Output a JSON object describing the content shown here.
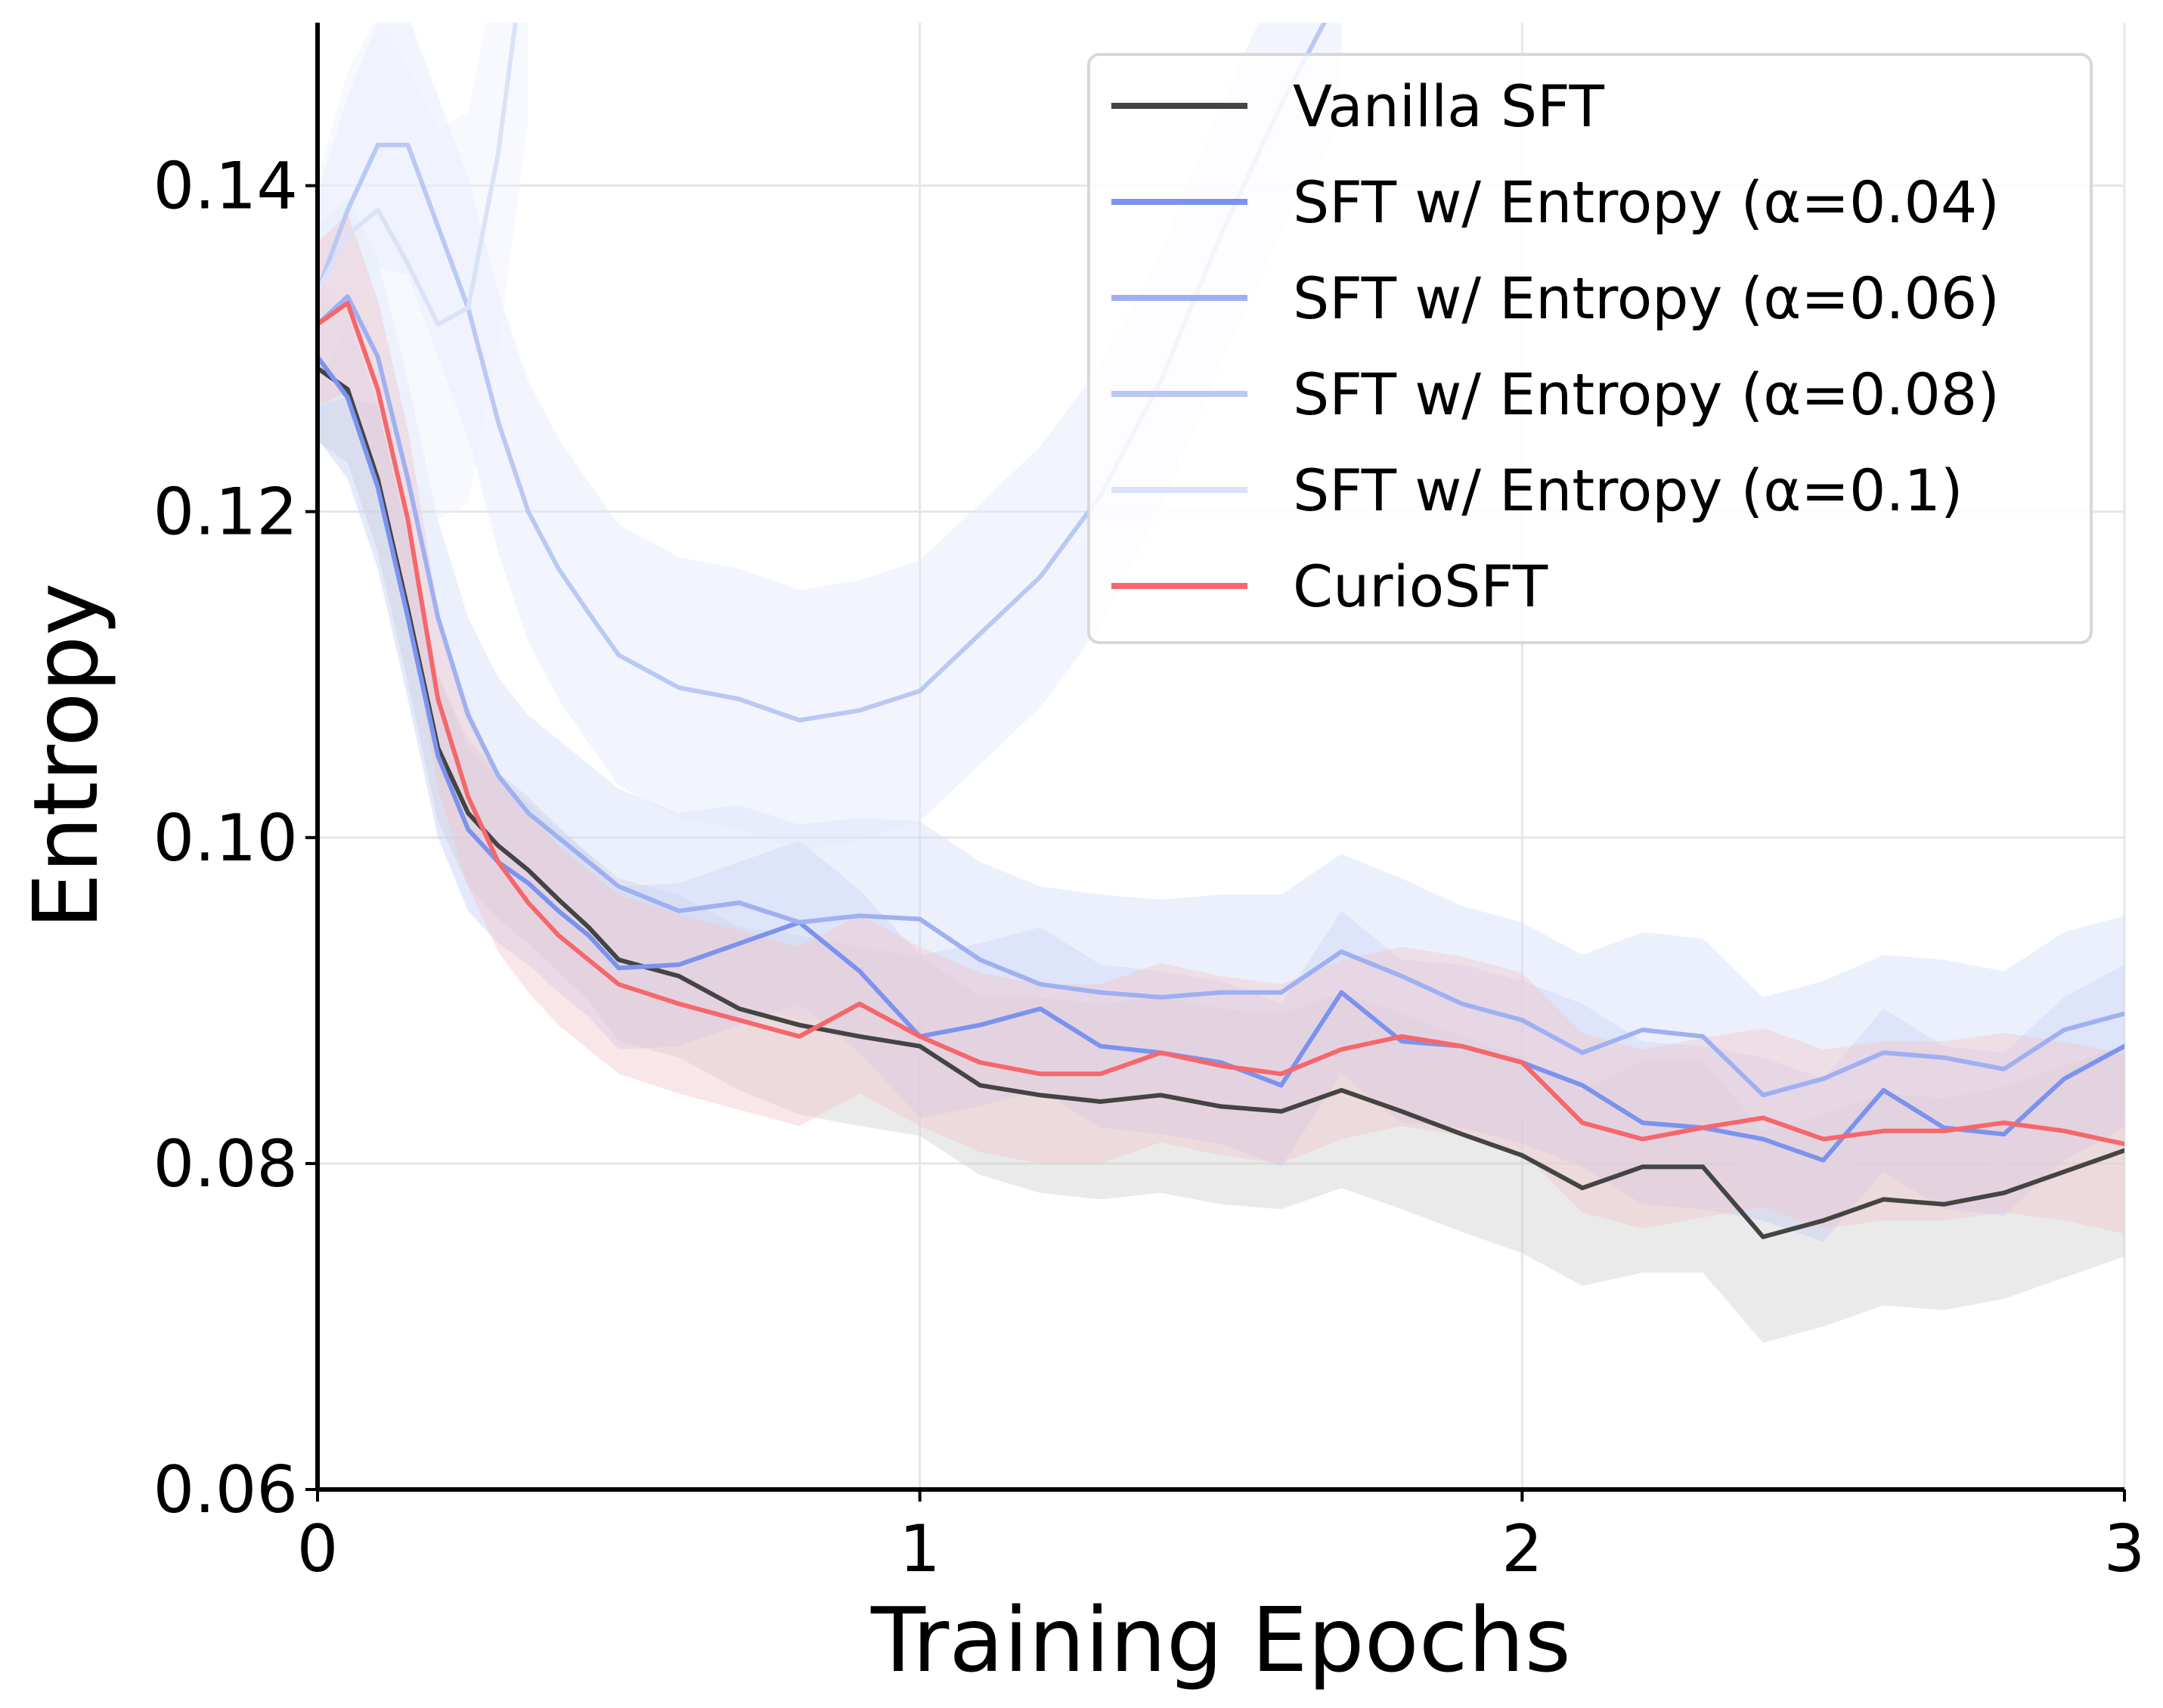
{
  "chart_data": {
    "type": "line",
    "xlabel": "Training Epochs",
    "ylabel": "Entropy",
    "xlim": [
      0,
      3
    ],
    "ylim": [
      0.06,
      0.15
    ],
    "xticks": [
      0,
      1,
      2,
      3
    ],
    "xtick_labels": [
      "0",
      "1",
      "2",
      "3"
    ],
    "yticks": [
      0.06,
      0.08,
      0.1,
      0.12,
      0.14
    ],
    "ytick_labels": [
      "0.06",
      "0.08",
      "0.10",
      "0.12",
      "0.14"
    ],
    "grid": true,
    "legend_position": "top-right",
    "x": [
      0,
      0.05,
      0.1,
      0.15,
      0.2,
      0.25,
      0.3,
      0.35,
      0.4,
      0.45,
      0.5,
      0.6,
      0.7,
      0.8,
      0.9,
      1.0,
      1.1,
      1.2,
      1.3,
      1.4,
      1.5,
      1.6,
      1.7,
      1.8,
      1.9,
      2.0,
      2.1,
      2.2,
      2.3,
      2.4,
      2.5,
      2.6,
      2.7,
      2.8,
      2.9,
      3.0
    ],
    "series": [
      {
        "name": "Vanilla SFT",
        "color": "#444444",
        "band_color": "#d0d0d0",
        "values": [
          0.1288,
          0.1275,
          0.122,
          0.114,
          0.1055,
          0.1015,
          0.0995,
          0.098,
          0.0962,
          0.0945,
          0.0925,
          0.0915,
          0.0895,
          0.0885,
          0.0878,
          0.0872,
          0.0848,
          0.0842,
          0.0838,
          0.0842,
          0.0835,
          0.0832,
          0.0845,
          0.0832,
          0.0818,
          0.0805,
          0.0785,
          0.0798,
          0.0798,
          0.0755,
          0.0765,
          0.0778,
          0.0775,
          0.0782,
          0.0795,
          0.0808
        ],
        "band": [
          0.0045,
          0.0045,
          0.0045,
          0.0045,
          0.0045,
          0.0045,
          0.0045,
          0.0045,
          0.0045,
          0.0045,
          0.005,
          0.005,
          0.005,
          0.0055,
          0.0055,
          0.0055,
          0.0055,
          0.006,
          0.006,
          0.006,
          0.006,
          0.006,
          0.006,
          0.006,
          0.006,
          0.006,
          0.006,
          0.0065,
          0.0065,
          0.0065,
          0.0065,
          0.0065,
          0.0065,
          0.0065,
          0.0065,
          0.0065
        ]
      },
      {
        "name": "SFT w/ Entropy (α=0.04)",
        "color": "#7b93ee",
        "band_color": "#c5cff5",
        "values": [
          0.1295,
          0.127,
          0.1215,
          0.1135,
          0.105,
          0.1005,
          0.0985,
          0.0972,
          0.0955,
          0.094,
          0.092,
          0.0922,
          0.0935,
          0.0948,
          0.0918,
          0.0878,
          0.0885,
          0.0895,
          0.0872,
          0.0868,
          0.0862,
          0.0848,
          0.0905,
          0.0875,
          0.0872,
          0.0862,
          0.0848,
          0.0825,
          0.0822,
          0.0815,
          0.0802,
          0.0845,
          0.0822,
          0.0818,
          0.0852,
          0.0872
        ],
        "band": [
          0.005,
          0.005,
          0.005,
          0.005,
          0.005,
          0.005,
          0.005,
          0.005,
          0.005,
          0.005,
          0.005,
          0.005,
          0.005,
          0.005,
          0.005,
          0.005,
          0.005,
          0.005,
          0.005,
          0.005,
          0.005,
          0.005,
          0.005,
          0.005,
          0.005,
          0.005,
          0.005,
          0.005,
          0.005,
          0.005,
          0.005,
          0.005,
          0.005,
          0.005,
          0.005,
          0.005
        ]
      },
      {
        "name": "SFT w/ Entropy (α=0.06)",
        "color": "#9fb0f2",
        "band_color": "#d5ddf8",
        "values": [
          0.1315,
          0.1332,
          0.1295,
          0.122,
          0.1135,
          0.1075,
          0.1038,
          0.1015,
          0.1,
          0.0985,
          0.097,
          0.0955,
          0.096,
          0.0948,
          0.0952,
          0.095,
          0.0925,
          0.091,
          0.0905,
          0.0902,
          0.0905,
          0.0905,
          0.093,
          0.0915,
          0.0898,
          0.0888,
          0.0868,
          0.0882,
          0.0878,
          0.0842,
          0.0852,
          0.0868,
          0.0865,
          0.0858,
          0.0882,
          0.0892
        ],
        "band": [
          0.006,
          0.006,
          0.006,
          0.006,
          0.006,
          0.006,
          0.006,
          0.006,
          0.006,
          0.006,
          0.006,
          0.006,
          0.006,
          0.006,
          0.006,
          0.006,
          0.006,
          0.006,
          0.006,
          0.006,
          0.006,
          0.006,
          0.006,
          0.006,
          0.006,
          0.006,
          0.006,
          0.006,
          0.006,
          0.006,
          0.006,
          0.006,
          0.006,
          0.006,
          0.006,
          0.006
        ]
      },
      {
        "name": "SFT w/ Entropy (α=0.08)",
        "color": "#bac8f5",
        "band_color": "#e2e8fa",
        "values": [
          0.1335,
          0.1385,
          0.1425,
          0.1425,
          0.1375,
          0.1325,
          0.1255,
          0.12,
          0.1165,
          0.1138,
          0.1112,
          0.1092,
          0.1085,
          0.1072,
          0.1078,
          0.109,
          0.1125,
          0.116,
          0.121,
          0.128,
          0.137,
          0.145,
          0.152,
          null,
          null,
          null,
          null,
          null,
          null,
          null,
          null,
          null,
          null,
          null,
          null,
          null
        ],
        "band": [
          0.006,
          0.007,
          0.0075,
          0.008,
          0.008,
          0.008,
          0.008,
          0.008,
          0.008,
          0.008,
          0.008,
          0.008,
          0.008,
          0.008,
          0.008,
          0.008,
          0.008,
          0.008,
          0.008,
          0.008,
          0.008,
          0.008,
          0.008,
          null,
          null,
          null,
          null,
          null,
          null,
          null,
          null,
          null,
          null,
          null,
          null,
          null
        ]
      },
      {
        "name": "SFT w/ Entropy (α=0.1)",
        "color": "#dbe2f8",
        "band_color": "#edf1fc",
        "values": [
          0.1335,
          0.137,
          0.1385,
          0.1352,
          0.1315,
          0.1325,
          0.142,
          0.156,
          null,
          null,
          null,
          null,
          null,
          null,
          null,
          null,
          null,
          null,
          null,
          null,
          null,
          null,
          null,
          null,
          null,
          null,
          null,
          null,
          null,
          null,
          null,
          null,
          null,
          null,
          null,
          null
        ],
        "band": [
          0.007,
          0.01,
          0.012,
          0.012,
          0.012,
          0.012,
          0.012,
          0.012,
          null,
          null,
          null,
          null,
          null,
          null,
          null,
          null,
          null,
          null,
          null,
          null,
          null,
          null,
          null,
          null,
          null,
          null,
          null,
          null,
          null,
          null,
          null,
          null,
          null,
          null,
          null,
          null
        ]
      },
      {
        "name": "CurioSFT",
        "color": "#f5676b",
        "band_color": "#f2c7cb",
        "values": [
          0.1315,
          0.1328,
          0.1275,
          0.1195,
          0.1085,
          0.1025,
          0.0985,
          0.096,
          0.094,
          0.0925,
          0.091,
          0.0898,
          0.0888,
          0.0878,
          0.0898,
          0.0878,
          0.0862,
          0.0855,
          0.0855,
          0.0868,
          0.086,
          0.0855,
          0.087,
          0.0878,
          0.0872,
          0.0862,
          0.0825,
          0.0815,
          0.0822,
          0.0828,
          0.0815,
          0.082,
          0.082,
          0.0825,
          0.082,
          0.0812
        ],
        "band": [
          0.005,
          0.0055,
          0.0055,
          0.0055,
          0.0055,
          0.0055,
          0.0055,
          0.0055,
          0.0055,
          0.0055,
          0.0055,
          0.0055,
          0.0055,
          0.0055,
          0.0055,
          0.0055,
          0.0055,
          0.0055,
          0.0055,
          0.0055,
          0.0055,
          0.0055,
          0.0055,
          0.0055,
          0.0055,
          0.0055,
          0.0055,
          0.0055,
          0.0055,
          0.0055,
          0.0055,
          0.0055,
          0.0055,
          0.0055,
          0.0055,
          0.0055
        ]
      }
    ]
  }
}
